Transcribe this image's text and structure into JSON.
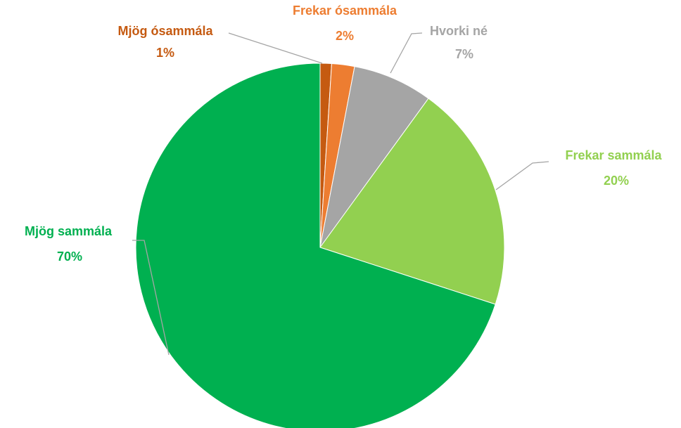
{
  "chart_data": {
    "type": "pie",
    "categories": [
      "Mjög ósammála",
      "Frekar ósammála",
      "Hvorki né",
      "Frekar sammála",
      "Mjög sammála"
    ],
    "values": [
      1,
      2,
      7,
      20,
      70
    ],
    "value_labels": [
      "1%",
      "2%",
      "7%",
      "20%",
      "70%"
    ],
    "colors": [
      "#c55a11",
      "#ed7d31",
      "#a5a5a5",
      "#92d050",
      "#00b050"
    ]
  }
}
